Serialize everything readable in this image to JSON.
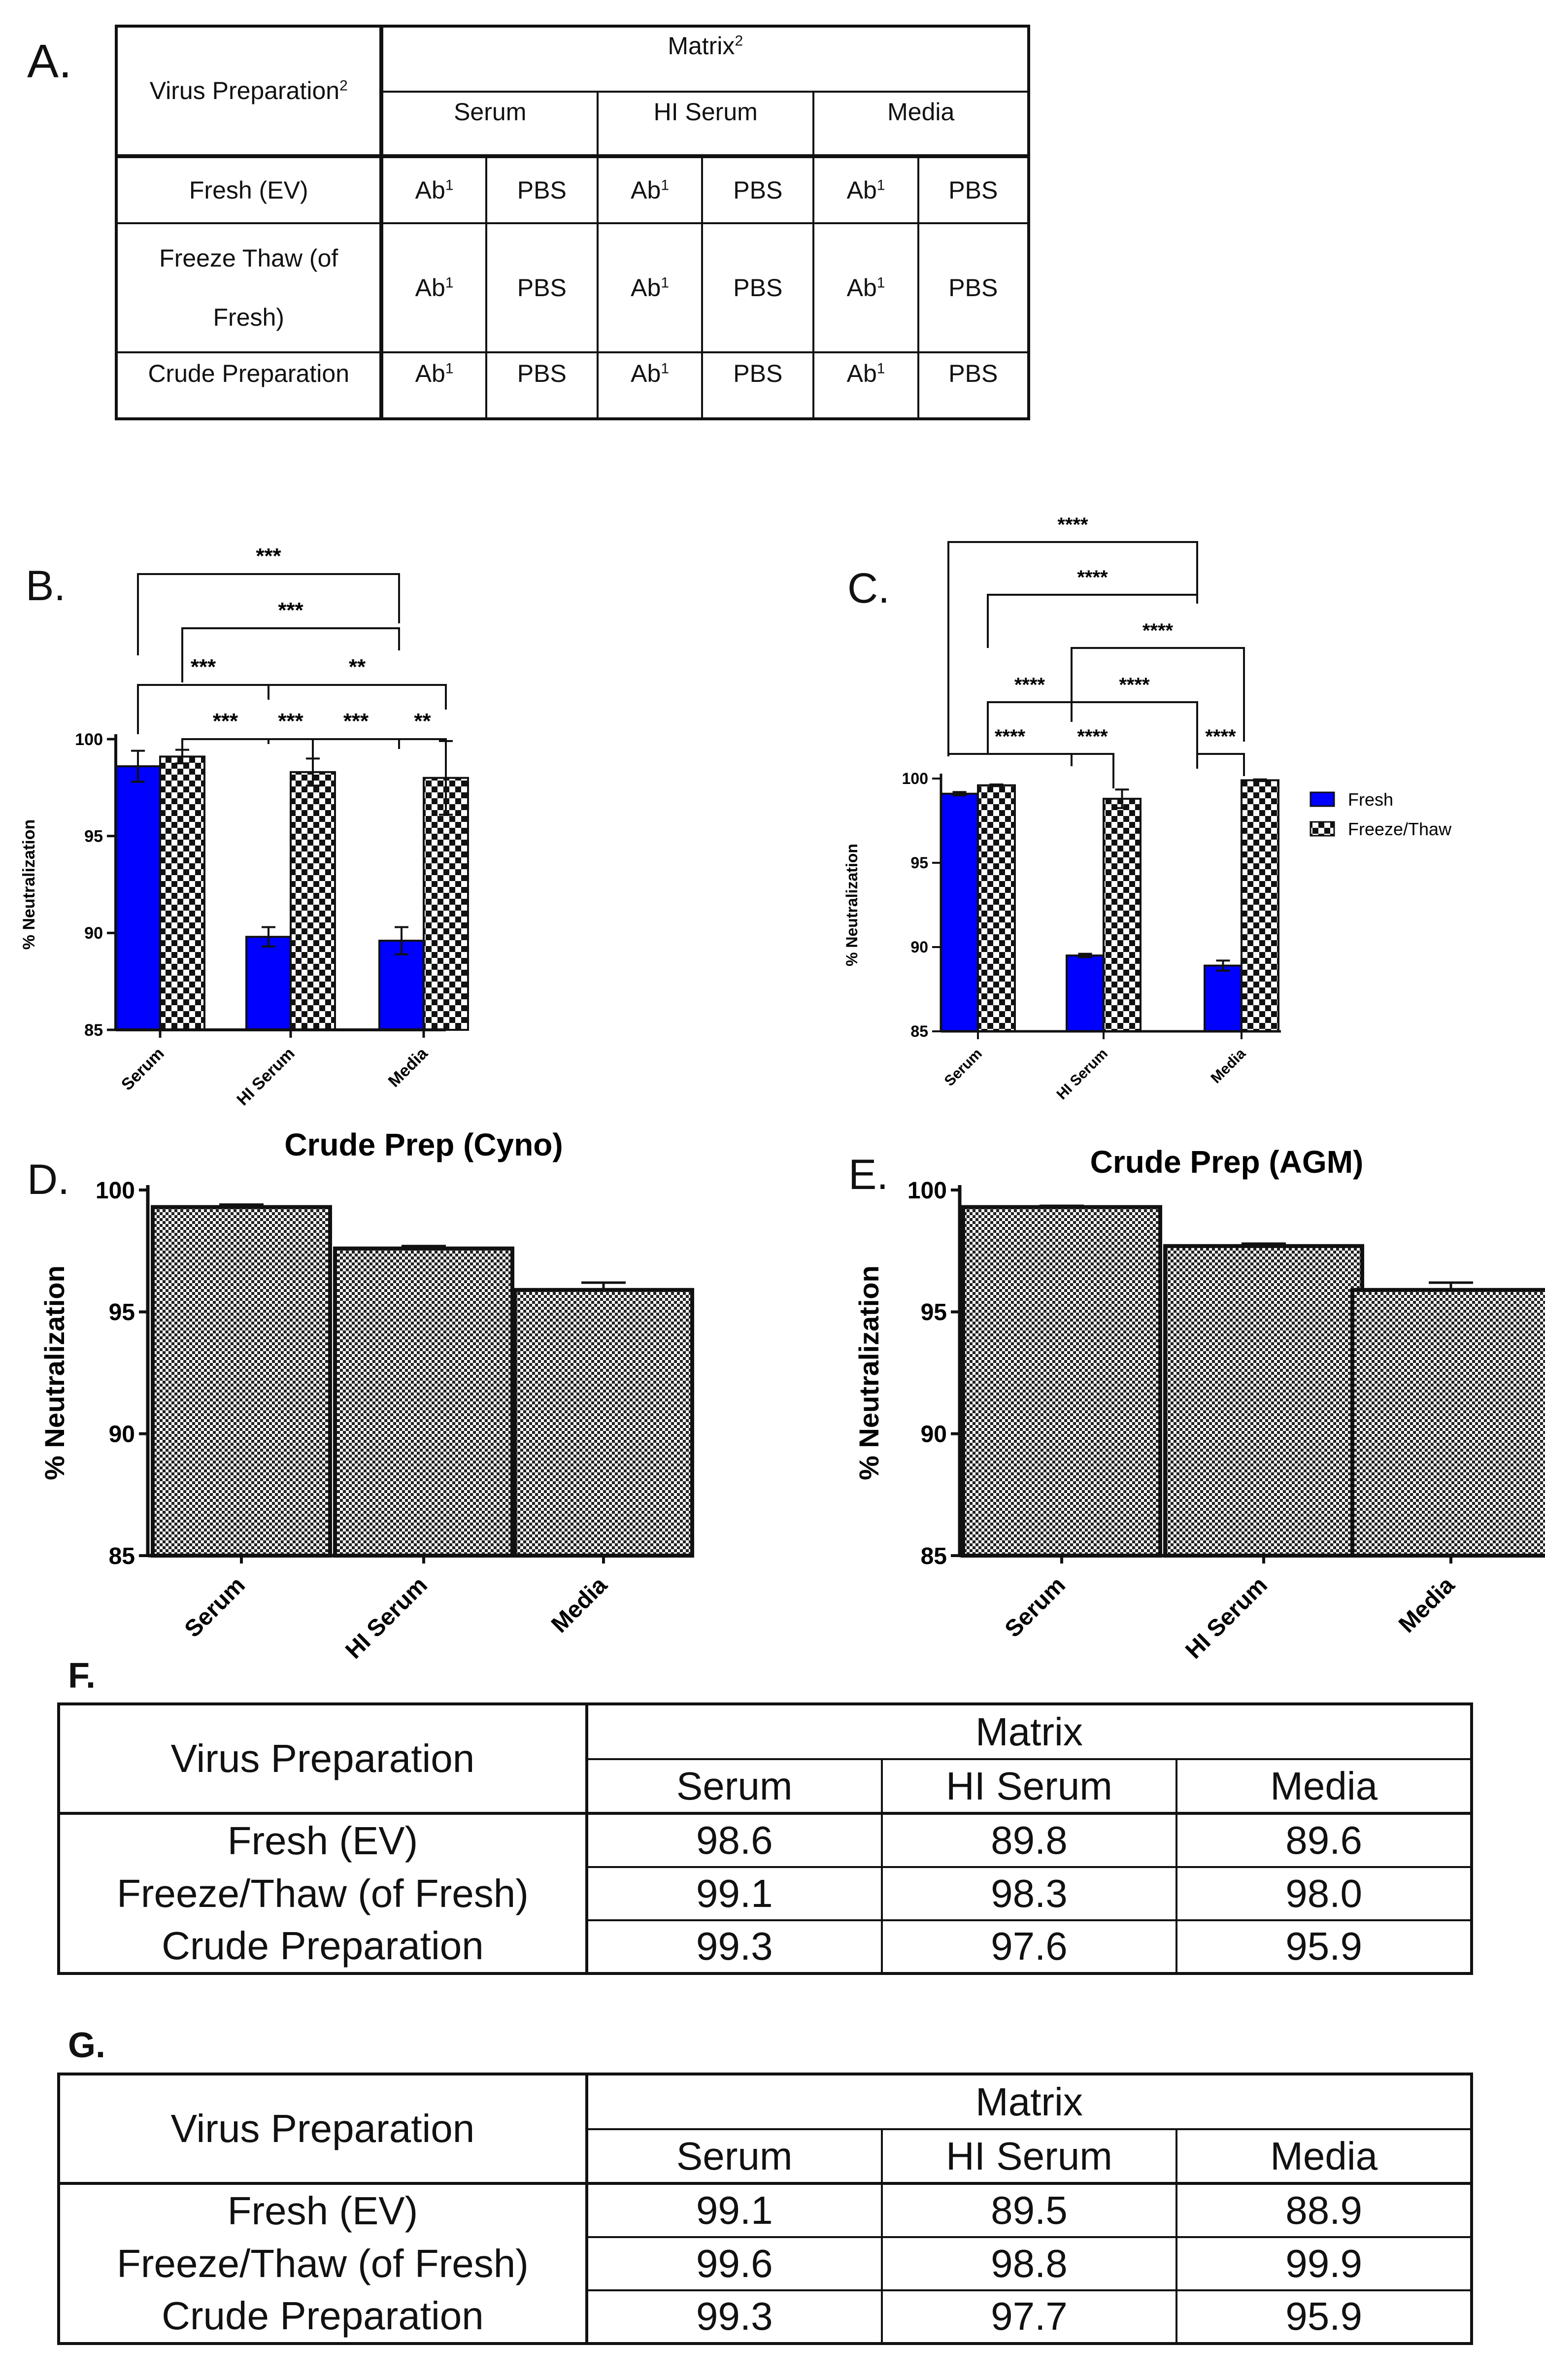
{
  "panels": {
    "a": "A.",
    "b": "B.",
    "c": "C.",
    "d": "D.",
    "e": "E.",
    "f": "F.",
    "g": "G."
  },
  "tableA": {
    "corner_label": "Virus Preparation",
    "corner_sup": "2",
    "matrix_label": "Matrix",
    "matrix_sup": "2",
    "matrix_groups": [
      "Serum",
      "HI Serum",
      "Media"
    ],
    "rows": [
      {
        "label": "Fresh (EV)",
        "label2": ""
      },
      {
        "label": "Freeze Thaw (of",
        "label2": "Fresh)"
      },
      {
        "label": "Crude Preparation",
        "label2": ""
      }
    ],
    "cell_ab": "Ab",
    "cell_ab_sup": "1",
    "cell_pbs": "PBS"
  },
  "chart_data": [
    {
      "id": "B",
      "type": "bar",
      "categories": [
        "Serum",
        "HI Serum",
        "Media"
      ],
      "series": [
        {
          "values": [
            98.6,
            89.8,
            89.6
          ],
          "errors": [
            0.8,
            0.5,
            0.7
          ],
          "color": "#0000ff",
          "pattern": "solid"
        },
        {
          "values": [
            99.1,
            98.3,
            98.0
          ],
          "errors": [
            0.35,
            0.7,
            1.9
          ],
          "color": "#000000",
          "pattern": "checker"
        }
      ],
      "ylabel": "% Neutralization",
      "ylim": [
        85,
        100
      ],
      "yticks": [
        85,
        90,
        95,
        100
      ],
      "significance": [
        {
          "label": "***"
        },
        {
          "label": "***"
        },
        {
          "label": "***"
        },
        {
          "label": "**"
        },
        {
          "label": "***"
        },
        {
          "label": "***"
        },
        {
          "label": "***"
        },
        {
          "label": "**"
        }
      ]
    },
    {
      "id": "C",
      "type": "bar",
      "categories": [
        "Serum",
        "HI Serum",
        "Media"
      ],
      "series": [
        {
          "name": "Fresh",
          "values": [
            99.1,
            89.5,
            88.9
          ],
          "errors": [
            0.1,
            0.1,
            0.3
          ],
          "color": "#0000ff",
          "pattern": "solid"
        },
        {
          "name": "Freeze/Thaw",
          "values": [
            99.6,
            98.8,
            99.9
          ],
          "errors": [
            0.05,
            0.55,
            0.05
          ],
          "color": "#000000",
          "pattern": "checker"
        }
      ],
      "ylabel": "% Neutralization",
      "ylim": [
        85,
        100
      ],
      "yticks": [
        85,
        90,
        95,
        100
      ],
      "legend": "right",
      "significance": [
        {
          "label": "****"
        },
        {
          "label": "****"
        },
        {
          "label": "****"
        },
        {
          "label": "****"
        },
        {
          "label": "****"
        },
        {
          "label": "****"
        },
        {
          "label": "****"
        },
        {
          "label": "****"
        }
      ]
    },
    {
      "id": "D",
      "type": "bar",
      "title": "Crude Prep (Cyno)",
      "categories": [
        "Serum",
        "HI Serum",
        "Media"
      ],
      "values": [
        99.3,
        97.6,
        95.9
      ],
      "errors": [
        0.1,
        0.1,
        0.3
      ],
      "color": "#000000",
      "pattern": "checker",
      "ylabel": "% Neutralization",
      "ylim": [
        85,
        100
      ],
      "yticks": [
        85,
        90,
        95,
        100
      ]
    },
    {
      "id": "E",
      "type": "bar",
      "title": "Crude Prep  (AGM)",
      "categories": [
        "Serum",
        "HI Serum",
        "Media"
      ],
      "values": [
        99.3,
        97.7,
        95.9
      ],
      "errors": [
        0.05,
        0.1,
        0.3
      ],
      "color": "#000000",
      "pattern": "checker",
      "ylabel": "% Neutralization",
      "ylim": [
        85,
        100
      ],
      "yticks": [
        85,
        90,
        95,
        100
      ]
    }
  ],
  "tableF": {
    "corner_label": "Virus Preparation",
    "matrix_label": "Matrix",
    "columns": [
      "Serum",
      "HI Serum",
      "Media"
    ],
    "rows": [
      {
        "label": "Fresh (EV)",
        "values": [
          "98.6",
          "89.8",
          "89.6"
        ]
      },
      {
        "label": "Freeze/Thaw (of Fresh)",
        "values": [
          "99.1",
          "98.3",
          "98.0"
        ]
      },
      {
        "label": "Crude Preparation",
        "values": [
          "99.3",
          "97.6",
          "95.9"
        ]
      }
    ]
  },
  "tableG": {
    "corner_label": "Virus Preparation",
    "matrix_label": "Matrix",
    "columns": [
      "Serum",
      "HI Serum",
      "Media"
    ],
    "rows": [
      {
        "label": "Fresh (EV)",
        "values": [
          "99.1",
          "89.5",
          "88.9"
        ]
      },
      {
        "label": "Freeze/Thaw (of Fresh)",
        "values": [
          "99.6",
          "98.8",
          "99.9"
        ]
      },
      {
        "label": "Crude Preparation",
        "values": [
          "99.3",
          "97.7",
          "95.9"
        ]
      }
    ]
  }
}
